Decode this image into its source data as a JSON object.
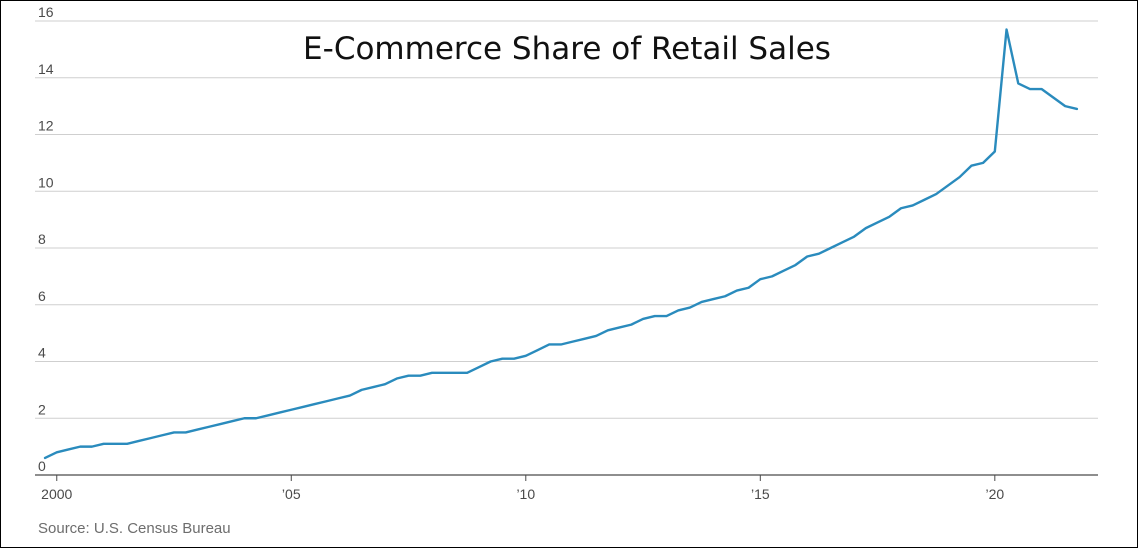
{
  "chart_data": {
    "type": "line",
    "title": "E-Commerce Share of Retail Sales",
    "source": "Source: U.S. Census Bureau",
    "xlabel": "",
    "ylabel": "",
    "ylim": [
      0,
      16
    ],
    "xlim": [
      1999.6,
      2022.2
    ],
    "grid": true,
    "yticks": [
      0,
      2,
      4,
      6,
      8,
      10,
      12,
      14,
      16
    ],
    "yticklabels": [
      "0",
      "2",
      "4",
      "6",
      "8",
      "10",
      "12",
      "14",
      "16"
    ],
    "xticks": [
      2000,
      2005,
      2010,
      2015,
      2020
    ],
    "xticklabels": [
      "2000",
      "’05",
      "’10",
      "’15",
      "’20"
    ],
    "line_color": "#2a8bbd",
    "series": [
      {
        "x": [
          1999.75,
          2000,
          2000.25,
          2000.5,
          2000.75,
          2001,
          2001.25,
          2001.5,
          2001.75,
          2002,
          2002.25,
          2002.5,
          2002.75,
          2003,
          2003.25,
          2003.5,
          2003.75,
          2004,
          2004.25,
          2004.5,
          2004.75,
          2005,
          2005.25,
          2005.5,
          2005.75,
          2006,
          2006.25,
          2006.5,
          2006.75,
          2007,
          2007.25,
          2007.5,
          2007.75,
          2008,
          2008.25,
          2008.5,
          2008.75,
          2009,
          2009.25,
          2009.5,
          2009.75,
          2010,
          2010.25,
          2010.5,
          2010.75,
          2011,
          2011.25,
          2011.5,
          2011.75,
          2012,
          2012.25,
          2012.5,
          2012.75,
          2013,
          2013.25,
          2013.5,
          2013.75,
          2014,
          2014.25,
          2014.5,
          2014.75,
          2015,
          2015.25,
          2015.5,
          2015.75,
          2016,
          2016.25,
          2016.5,
          2016.75,
          2017,
          2017.25,
          2017.5,
          2017.75,
          2018,
          2018.25,
          2018.5,
          2018.75,
          2019,
          2019.25,
          2019.5,
          2019.75,
          2020,
          2020.25,
          2020.5,
          2020.75,
          2021,
          2021.25,
          2021.5,
          2021.75
        ],
        "values": [
          0.6,
          0.8,
          0.9,
          1.0,
          1.0,
          1.1,
          1.1,
          1.1,
          1.2,
          1.3,
          1.4,
          1.5,
          1.5,
          1.6,
          1.7,
          1.8,
          1.9,
          2.0,
          2.0,
          2.1,
          2.2,
          2.3,
          2.4,
          2.5,
          2.6,
          2.7,
          2.8,
          3.0,
          3.1,
          3.2,
          3.4,
          3.5,
          3.5,
          3.6,
          3.6,
          3.6,
          3.6,
          3.8,
          4.0,
          4.1,
          4.1,
          4.2,
          4.4,
          4.6,
          4.6,
          4.7,
          4.8,
          4.9,
          5.1,
          5.2,
          5.3,
          5.5,
          5.6,
          5.6,
          5.8,
          5.9,
          6.1,
          6.2,
          6.3,
          6.5,
          6.6,
          6.9,
          7.0,
          7.2,
          7.4,
          7.7,
          7.8,
          8.0,
          8.2,
          8.4,
          8.7,
          8.9,
          9.1,
          9.4,
          9.5,
          9.7,
          9.9,
          10.2,
          10.5,
          10.9,
          11.0,
          11.4,
          15.7,
          13.8,
          13.6,
          13.6,
          13.3,
          13.0,
          12.9
        ]
      }
    ]
  }
}
